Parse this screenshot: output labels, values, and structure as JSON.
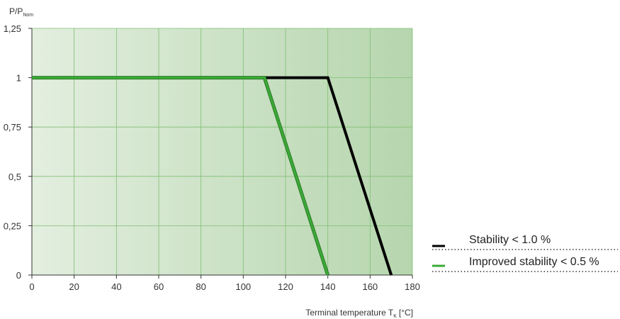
{
  "chart_data": {
    "type": "line",
    "title": "",
    "xlabel": {
      "text": "Terminal temperature T",
      "subscript": "K",
      "unit": "[°C]"
    },
    "ylabel": {
      "text": "P/P",
      "subscript": "Nom"
    },
    "xlim": [
      0,
      180
    ],
    "ylim": [
      0,
      1.25
    ],
    "x_ticks": [
      0,
      20,
      40,
      60,
      80,
      100,
      120,
      140,
      160,
      180
    ],
    "x_tick_labels": [
      "0",
      "20",
      "40",
      "60",
      "80",
      "100",
      "120",
      "140",
      "160",
      "180"
    ],
    "y_ticks": [
      0,
      0.25,
      0.5,
      0.75,
      1,
      1.25
    ],
    "y_tick_labels": [
      "0",
      "0,25",
      "0,5",
      "0,75",
      "1",
      "1,25"
    ],
    "grid": true,
    "legend_position": "bottom-right",
    "series": [
      {
        "name": "Stability < 1.0 %",
        "color": "#000000",
        "x": [
          0,
          140,
          170
        ],
        "y": [
          1,
          1,
          0
        ]
      },
      {
        "name": "Improved stability < 0.5 %",
        "color": "#3aaa35",
        "x": [
          0,
          110,
          140
        ],
        "y": [
          1,
          1,
          0
        ]
      }
    ],
    "colors": {
      "plot_gradient_start": "#e3eedf",
      "plot_gradient_end": "#b6d6ae",
      "grid": "#7fbf72",
      "axis": "#333333"
    }
  }
}
